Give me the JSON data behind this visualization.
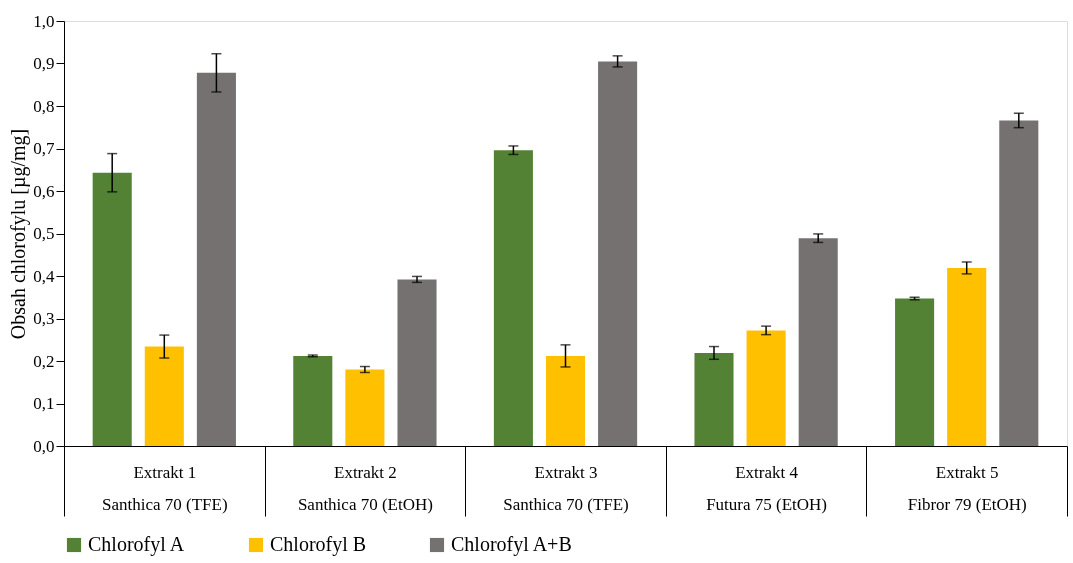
{
  "chart_data": {
    "type": "bar",
    "ylabel": "Obsah chlorofylu [µg/mg]",
    "categories": [
      "Extrakt 1\nSanthica 70 (TFE)",
      "Extrakt 2\nSanthica 70 (EtOH)",
      "Extrakt 3\nSanthica 70 (TFE)",
      "Extrakt 4\nFutura 75 (EtOH)",
      "Extrakt 5\nFibror 79 (EtOH)"
    ],
    "series": [
      {
        "name": "Chlorofyl A",
        "color": "#548235",
        "values": [
          0.643,
          0.212,
          0.696,
          0.219,
          0.347
        ],
        "errors": [
          0.045,
          0.002,
          0.01,
          0.015,
          0.003
        ]
      },
      {
        "name": "Chlorofyl B",
        "color": "#ffc000",
        "values": [
          0.234,
          0.18,
          0.212,
          0.272,
          0.419
        ],
        "errors": [
          0.027,
          0.007,
          0.026,
          0.01,
          0.014
        ]
      },
      {
        "name": "Chlorofyl A+B",
        "color": "#767171",
        "values": [
          0.878,
          0.392,
          0.905,
          0.489,
          0.766
        ],
        "errors": [
          0.045,
          0.007,
          0.013,
          0.01,
          0.017
        ]
      }
    ],
    "ylim": [
      0,
      1.0
    ],
    "yticks": [
      {
        "value": 0,
        "label": "0,0"
      },
      {
        "value": 0.1,
        "label": "0,1"
      },
      {
        "value": 0.2,
        "label": "0,2"
      },
      {
        "value": 0.3,
        "label": "0,3"
      },
      {
        "value": 0.4,
        "label": "0,4"
      },
      {
        "value": 0.5,
        "label": "0,5"
      },
      {
        "value": 0.6,
        "label": "0,6"
      },
      {
        "value": 0.7,
        "label": "0,7"
      },
      {
        "value": 0.8,
        "label": "0,8"
      },
      {
        "value": 0.9,
        "label": "0,9"
      },
      {
        "value": 1.0,
        "label": "1,0"
      }
    ],
    "grid": false,
    "legend": "bottom"
  }
}
